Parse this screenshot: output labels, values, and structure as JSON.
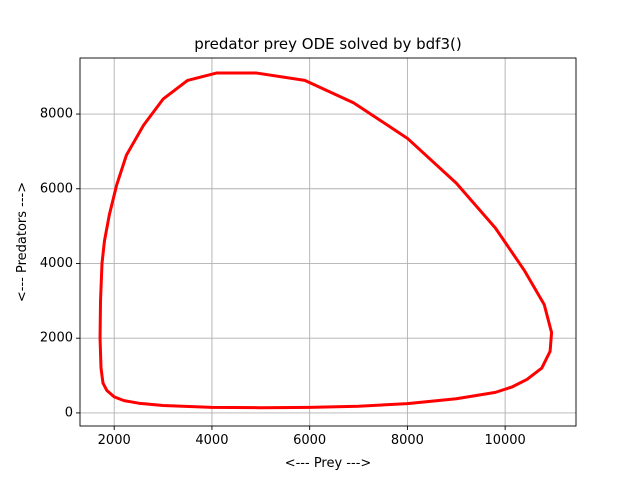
{
  "chart_data": {
    "type": "line",
    "title": "predator prey ODE solved by bdf3()",
    "xlabel": "<--- Prey --->",
    "ylabel": "<--- Predators --->",
    "xlim": [
      1300,
      11450
    ],
    "ylim": [
      -350,
      9500
    ],
    "xticks": [
      2000,
      4000,
      6000,
      8000,
      10000
    ],
    "yticks": [
      0,
      2000,
      4000,
      6000,
      8000
    ],
    "grid": true,
    "series": [
      {
        "name": "",
        "color": "#ff0000",
        "x": [
          4900,
          5900,
          6900,
          8000,
          9000,
          9800,
          10400,
          10800,
          10950,
          10920,
          10750,
          10450,
          10150,
          9800,
          9000,
          8000,
          7000,
          6000,
          5000,
          4000,
          3000,
          2500,
          2200,
          2000,
          1850,
          1770,
          1730,
          1710,
          1720,
          1750,
          1800,
          1900,
          2050,
          2250,
          2600,
          3000,
          3500,
          4100,
          4900
        ],
        "y": [
          9100,
          8900,
          8300,
          7350,
          6150,
          4950,
          3800,
          2900,
          2150,
          1650,
          1200,
          900,
          700,
          550,
          380,
          250,
          180,
          150,
          140,
          150,
          200,
          260,
          330,
          430,
          600,
          800,
          1200,
          2000,
          3000,
          4000,
          4600,
          5300,
          6100,
          6900,
          7700,
          8400,
          8900,
          9100,
          9100
        ]
      }
    ]
  }
}
